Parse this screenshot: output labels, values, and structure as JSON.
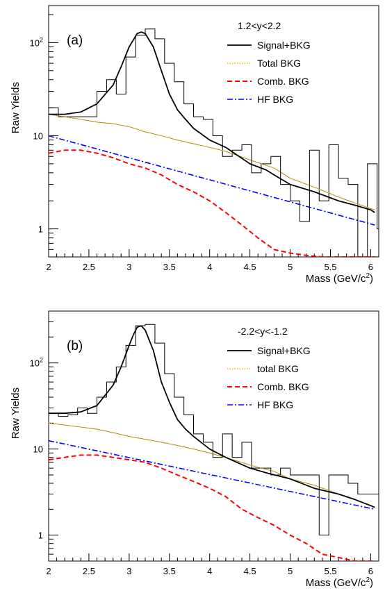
{
  "chart_data": [
    {
      "type": "line",
      "panel_label": "(a)",
      "legend_title": "1.2<y<2.2",
      "xlabel": "Mass (GeV/c",
      "xlabel_sup": "2",
      "xlabel_close": ")",
      "ylabel": "Raw Yields",
      "xlim": [
        2.0,
        6.1
      ],
      "ylim": [
        0.5,
        250
      ],
      "y_scale": "log",
      "x_ticks": [
        {
          "v": 2,
          "label": "2"
        },
        {
          "v": 2.5,
          "label": "2.5"
        },
        {
          "v": 3,
          "label": "3"
        },
        {
          "v": 3.5,
          "label": "3.5"
        },
        {
          "v": 4,
          "label": "4"
        },
        {
          "v": 4.5,
          "label": "4.5"
        },
        {
          "v": 5,
          "label": "5"
        },
        {
          "v": 5.5,
          "label": "5.5"
        },
        {
          "v": 6,
          "label": "6"
        }
      ],
      "y_ticks": [
        {
          "v": 1,
          "label": "1"
        },
        {
          "v": 10,
          "label": "10"
        },
        {
          "v": 100,
          "label": "10",
          "sup": "2"
        }
      ],
      "legend": [
        {
          "key": "data",
          "label": "Signal+BKG"
        },
        {
          "key": "total",
          "label": "Total BKG"
        },
        {
          "key": "comb",
          "label": "Comb. BKG"
        },
        {
          "key": "hf",
          "label": "HF BKG"
        }
      ],
      "data_histogram": {
        "x_start": 2.0,
        "bin_width": 0.12,
        "values": [
          20,
          16,
          16,
          16,
          16,
          30,
          40,
          28,
          70,
          120,
          140,
          110,
          60,
          38,
          22,
          16,
          15,
          10,
          6,
          7,
          8,
          4,
          5,
          6,
          3,
          2,
          1.2,
          7,
          2,
          8,
          3.5,
          3,
          0.5,
          5,
          1,
          1,
          1,
          1,
          1,
          2.5,
          2.3,
          2,
          1.8,
          0.5,
          1,
          1,
          2
        ]
      },
      "series": [
        {
          "key": "data",
          "label": "Signal+BKG",
          "color": "#000000",
          "x": [
            2.0,
            2.2,
            2.4,
            2.6,
            2.8,
            2.9,
            3.0,
            3.1,
            3.15,
            3.2,
            3.3,
            3.4,
            3.5,
            3.6,
            3.7,
            3.8,
            4.0,
            4.2,
            4.5,
            4.7,
            4.8,
            5.0,
            5.3,
            5.6,
            5.8,
            6.0,
            6.05
          ],
          "y": [
            17,
            17,
            18,
            22,
            35,
            55,
            90,
            125,
            130,
            125,
            90,
            50,
            28,
            19,
            15,
            12,
            9,
            7.5,
            5,
            4.3,
            3.8,
            3,
            2.5,
            2,
            1.8,
            1.6,
            1.5
          ]
        },
        {
          "key": "total",
          "label": "Total BKG",
          "color": "#f0b400",
          "x": [
            2.0,
            2.2,
            2.4,
            2.6,
            2.8,
            3.0,
            3.2,
            3.4,
            3.6,
            3.8,
            4.0,
            4.2,
            4.5,
            4.8,
            5.0,
            5.3,
            5.6,
            5.8,
            6.0,
            6.05
          ],
          "y": [
            17,
            16,
            15,
            14,
            13.5,
            12.5,
            11,
            10,
            9,
            8.2,
            7.5,
            6.8,
            5.5,
            4.5,
            3.5,
            2.8,
            2.2,
            1.9,
            1.65,
            1.6
          ]
        },
        {
          "key": "comb",
          "label": "Comb. BKG",
          "color": "#ff0000",
          "x": [
            2.0,
            2.2,
            2.4,
            2.6,
            2.8,
            3.0,
            3.2,
            3.4,
            3.6,
            3.8,
            4.0,
            4.2,
            4.4,
            4.6,
            4.8,
            5.0,
            5.2,
            5.4,
            5.6,
            5.8,
            6.0,
            6.05
          ],
          "y": [
            6.5,
            7,
            7,
            6.5,
            5.8,
            5,
            4.5,
            3.8,
            3,
            2.5,
            2,
            1.5,
            1.1,
            0.8,
            0.6,
            0.55,
            0.52,
            0.5,
            0.5,
            0.5,
            0.5,
            0.5
          ]
        },
        {
          "key": "hf",
          "label": "HF BKG",
          "color": "#0000ff",
          "x": [
            2.0,
            6.05
          ],
          "y": [
            10,
            1.1
          ]
        }
      ]
    },
    {
      "type": "line",
      "panel_label": "(b)",
      "legend_title": "-2.2<y<-1.2",
      "xlabel": "Mass (GeV/c",
      "xlabel_sup": "2",
      "xlabel_close": ")",
      "ylabel": "Raw Yields",
      "xlim": [
        2.0,
        6.1
      ],
      "ylim": [
        0.5,
        400
      ],
      "y_scale": "log",
      "x_ticks": [
        {
          "v": 2,
          "label": "2"
        },
        {
          "v": 2.5,
          "label": "2.5"
        },
        {
          "v": 3,
          "label": "3"
        },
        {
          "v": 3.5,
          "label": "3.5"
        },
        {
          "v": 4,
          "label": "4"
        },
        {
          "v": 4.5,
          "label": "4.5"
        },
        {
          "v": 5,
          "label": "5"
        },
        {
          "v": 5.5,
          "label": "5.5"
        },
        {
          "v": 6,
          "label": "6"
        }
      ],
      "y_ticks": [
        {
          "v": 1,
          "label": "1"
        },
        {
          "v": 10,
          "label": "10"
        },
        {
          "v": 100,
          "label": "10",
          "sup": "2"
        }
      ],
      "legend": [
        {
          "key": "data",
          "label": "Signal+BKG"
        },
        {
          "key": "total",
          "label": "total BKG"
        },
        {
          "key": "comb",
          "label": "Comb. BKG"
        },
        {
          "key": "hf",
          "label": "HF BKG"
        }
      ],
      "data_histogram": {
        "x_start": 2.0,
        "bin_width": 0.12,
        "values": [
          26,
          24,
          25,
          30,
          26,
          40,
          60,
          90,
          160,
          270,
          280,
          170,
          75,
          40,
          25,
          15,
          12,
          8,
          15,
          8,
          12,
          6,
          6,
          5,
          6,
          5,
          5,
          5,
          1,
          5,
          5,
          4,
          3,
          3,
          3,
          2,
          2,
          2,
          4,
          2,
          1,
          2,
          3,
          5,
          2,
          3,
          3
        ]
      },
      "series": [
        {
          "key": "data",
          "label": "Signal+BKG",
          "color": "#000000",
          "x": [
            2.0,
            2.2,
            2.4,
            2.6,
            2.8,
            2.9,
            3.0,
            3.05,
            3.1,
            3.15,
            3.2,
            3.3,
            3.4,
            3.5,
            3.6,
            3.7,
            3.8,
            4.0,
            4.2,
            4.5,
            4.7,
            5.0,
            5.3,
            5.6,
            5.8,
            6.0,
            6.05
          ],
          "y": [
            26,
            26,
            27,
            32,
            55,
            90,
            160,
            210,
            260,
            270,
            240,
            140,
            60,
            35,
            22,
            17,
            14,
            10,
            8,
            6,
            5.3,
            4.5,
            3.5,
            3,
            2.6,
            2.2,
            2.1
          ]
        },
        {
          "key": "total",
          "label": "total BKG",
          "color": "#f0b400",
          "x": [
            2.0,
            2.2,
            2.4,
            2.6,
            2.8,
            3.0,
            3.2,
            3.4,
            3.6,
            3.8,
            4.0,
            4.2,
            4.5,
            4.8,
            5.0,
            5.3,
            5.6,
            5.8,
            6.0,
            6.05
          ],
          "y": [
            20,
            19,
            18,
            17,
            15.5,
            14,
            13,
            12,
            11,
            10,
            9,
            8,
            6.5,
            5.5,
            4.5,
            3.8,
            3,
            2.6,
            2.2,
            2.1
          ]
        },
        {
          "key": "comb",
          "label": "Comb. BKG",
          "color": "#ff0000",
          "x": [
            2.0,
            2.2,
            2.4,
            2.6,
            2.8,
            3.0,
            3.2,
            3.4,
            3.6,
            3.8,
            4.0,
            4.2,
            4.4,
            4.6,
            4.8,
            5.0,
            5.2,
            5.4,
            5.6,
            5.8,
            6.0,
            6.05
          ],
          "y": [
            7.5,
            8,
            8.5,
            8.5,
            8,
            7.5,
            7,
            6,
            5,
            4.2,
            3.5,
            2.8,
            2,
            1.6,
            1.3,
            1,
            0.8,
            0.6,
            0.55,
            0.5,
            0.5,
            0.5
          ]
        },
        {
          "key": "hf",
          "label": "HF BKG",
          "color": "#0000ff",
          "x": [
            2.0,
            6.05
          ],
          "y": [
            12.5,
            2.0
          ]
        }
      ]
    }
  ]
}
